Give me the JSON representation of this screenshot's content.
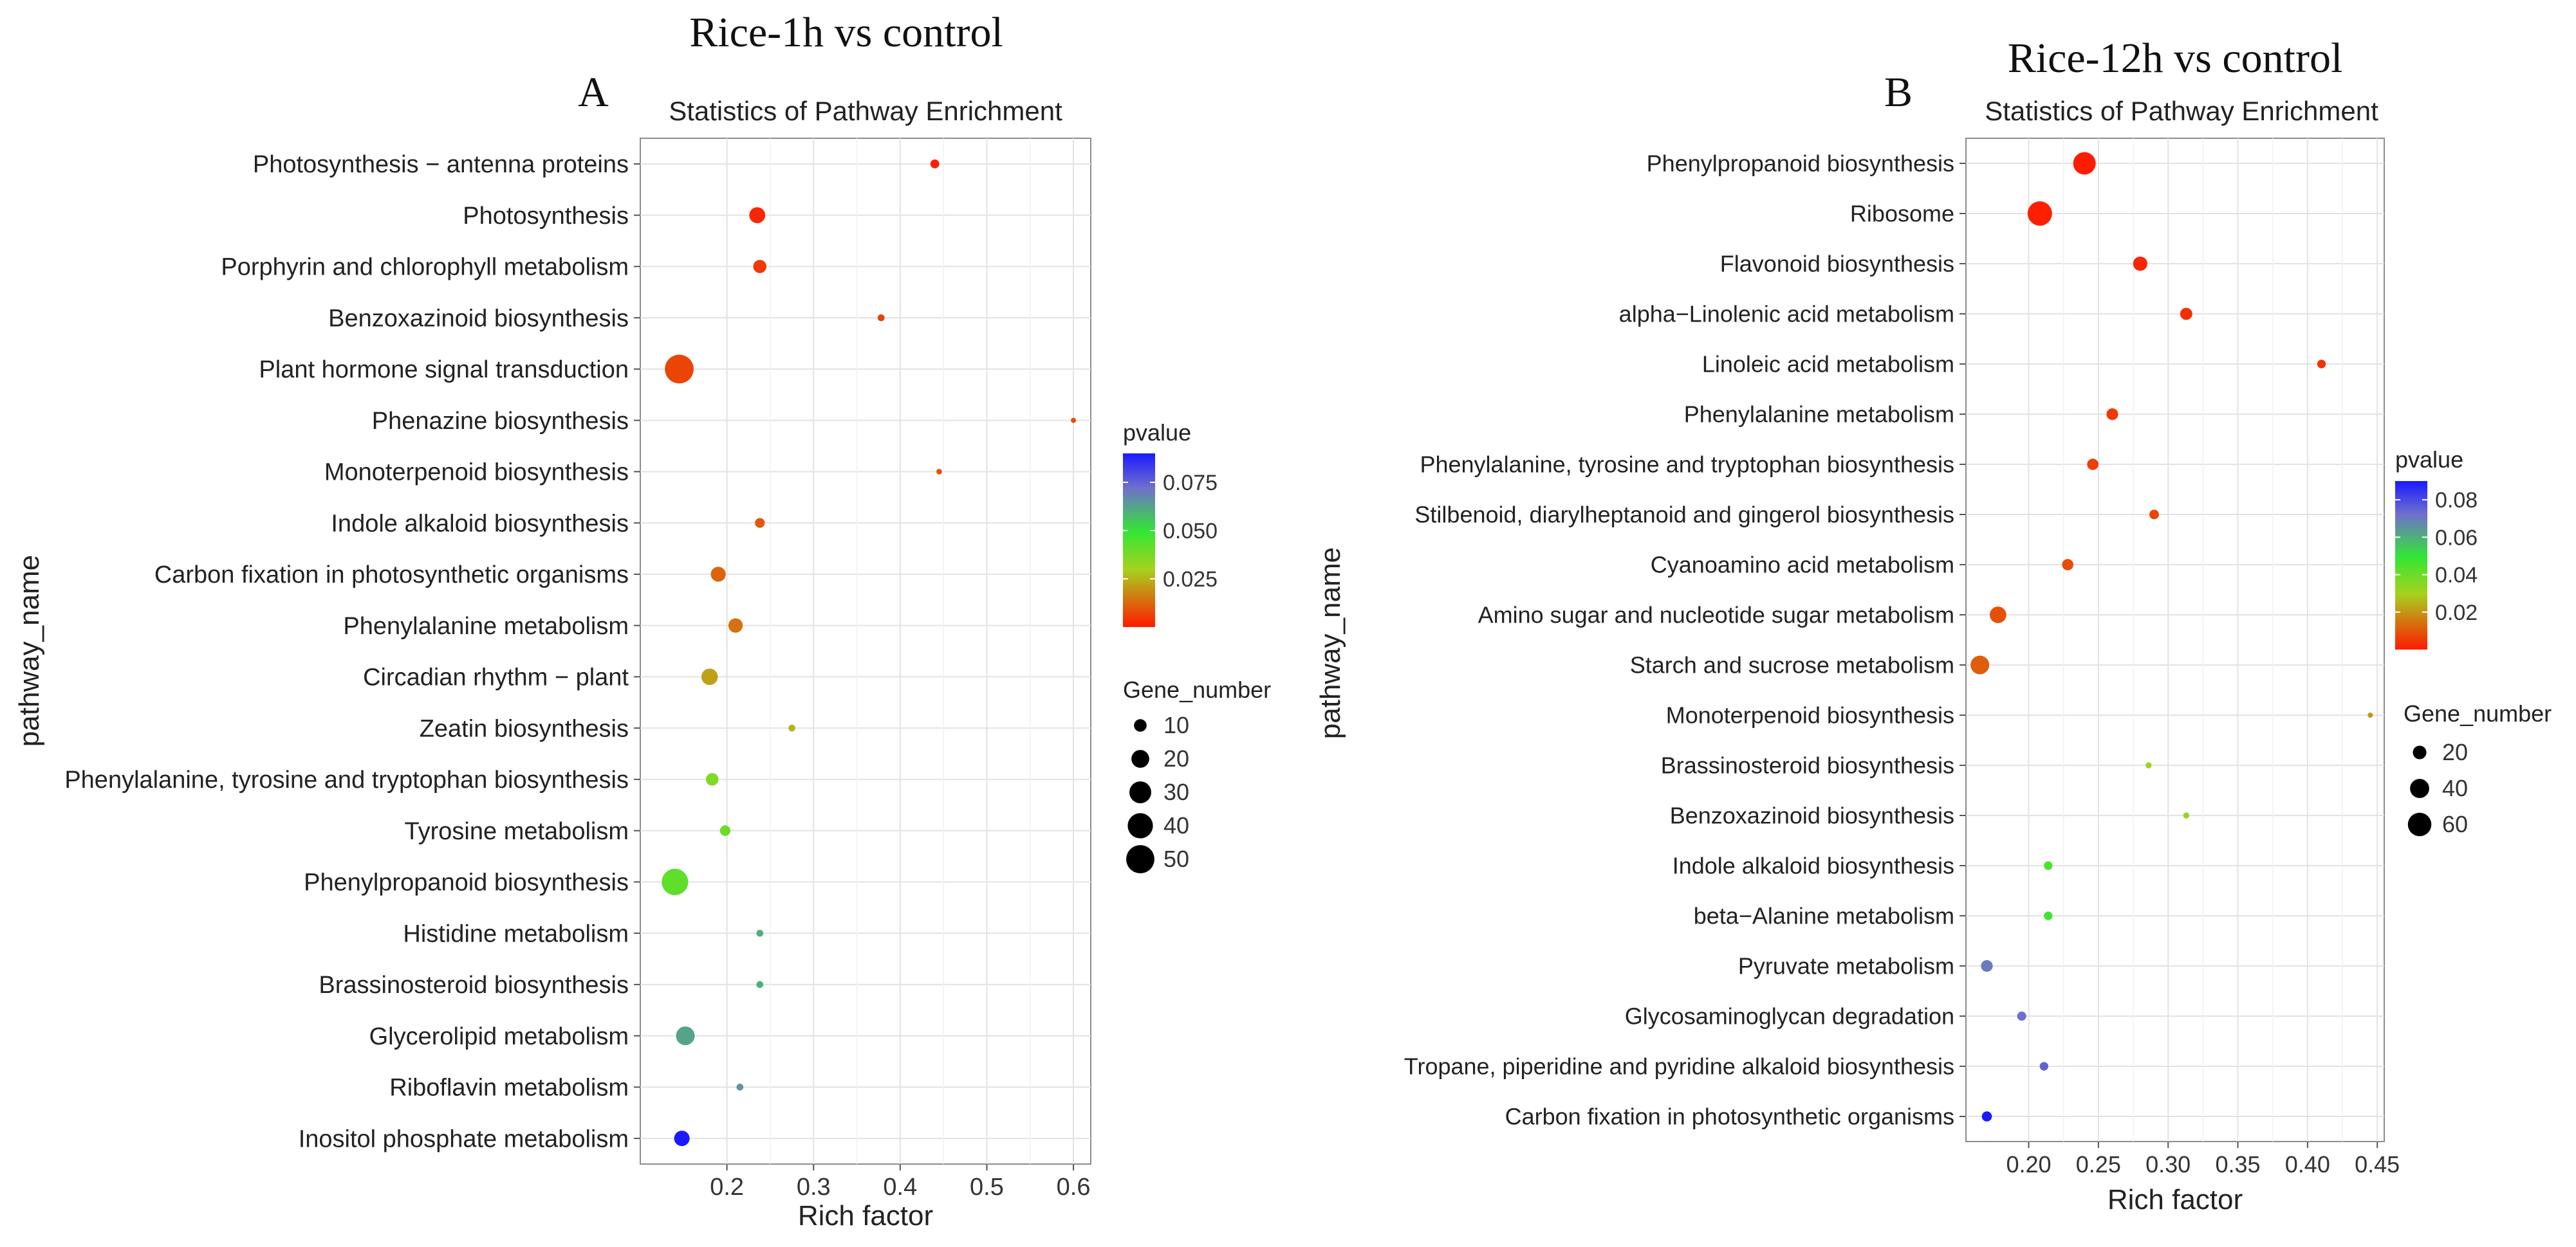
{
  "chart_data": [
    {
      "type": "scatter",
      "panel_letter": "A",
      "heading": "Rice-1h vs control",
      "title": "Statistics of Pathway Enrichment",
      "xlabel": "Rich factor",
      "ylabel": "pathway_name",
      "xlim": [
        0.1,
        0.62
      ],
      "xticks": [
        0.2,
        0.3,
        0.4,
        0.5,
        0.6
      ],
      "x_tick_labels": [
        "0.2",
        "0.3",
        "0.4",
        "0.5",
        "0.6"
      ],
      "grid": true,
      "color_legend": {
        "title": "pvalue",
        "domain": [
          0.0,
          0.09
        ],
        "ticks": [
          0.025,
          0.05,
          0.075
        ],
        "tick_labels": [
          "0.025",
          "0.050",
          "0.075"
        ]
      },
      "size_legend": {
        "title": "Gene_number",
        "values": [
          10,
          20,
          30,
          40,
          50
        ],
        "labels": [
          "10",
          "20",
          "30",
          "40",
          "50"
        ],
        "max_value": 55
      },
      "points": [
        {
          "pathway": "Photosynthesis − antenna proteins",
          "rich_factor": 0.44,
          "pvalue": 0.001,
          "gene_number": 5
        },
        {
          "pathway": "Photosynthesis",
          "rich_factor": 0.235,
          "pvalue": 0.002,
          "gene_number": 16
        },
        {
          "pathway": "Porphyrin and chlorophyll metabolism",
          "rich_factor": 0.238,
          "pvalue": 0.005,
          "gene_number": 11
        },
        {
          "pathway": "Benzoxazinoid biosynthesis",
          "rich_factor": 0.378,
          "pvalue": 0.006,
          "gene_number": 3
        },
        {
          "pathway": "Plant hormone signal transduction",
          "rich_factor": 0.145,
          "pvalue": 0.007,
          "gene_number": 52
        },
        {
          "pathway": "Phenazine biosynthesis",
          "rich_factor": 0.6,
          "pvalue": 0.008,
          "gene_number": 1
        },
        {
          "pathway": "Monoterpenoid biosynthesis",
          "rich_factor": 0.445,
          "pvalue": 0.009,
          "gene_number": 2
        },
        {
          "pathway": "Indole alkaloid biosynthesis",
          "rich_factor": 0.238,
          "pvalue": 0.01,
          "gene_number": 6
        },
        {
          "pathway": "Carbon fixation in photosynthetic organisms",
          "rich_factor": 0.19,
          "pvalue": 0.012,
          "gene_number": 14
        },
        {
          "pathway": "Phenylalanine metabolism",
          "rich_factor": 0.21,
          "pvalue": 0.014,
          "gene_number": 13
        },
        {
          "pathway": "Circadian rhythm − plant",
          "rich_factor": 0.18,
          "pvalue": 0.022,
          "gene_number": 17
        },
        {
          "pathway": "Zeatin biosynthesis",
          "rich_factor": 0.275,
          "pvalue": 0.025,
          "gene_number": 3
        },
        {
          "pathway": "Phenylalanine, tyrosine and tryptophan biosynthesis",
          "rich_factor": 0.183,
          "pvalue": 0.036,
          "gene_number": 10
        },
        {
          "pathway": "Tyrosine metabolism",
          "rich_factor": 0.198,
          "pvalue": 0.04,
          "gene_number": 7
        },
        {
          "pathway": "Phenylpropanoid biosynthesis",
          "rich_factor": 0.14,
          "pvalue": 0.042,
          "gene_number": 44
        },
        {
          "pathway": "Histidine metabolism",
          "rich_factor": 0.238,
          "pvalue": 0.06,
          "gene_number": 3
        },
        {
          "pathway": "Brassinosteroid biosynthesis",
          "rich_factor": 0.238,
          "pvalue": 0.06,
          "gene_number": 3
        },
        {
          "pathway": "Glycerolipid metabolism",
          "rich_factor": 0.152,
          "pvalue": 0.062,
          "gene_number": 22
        },
        {
          "pathway": "Riboflavin metabolism",
          "rich_factor": 0.215,
          "pvalue": 0.065,
          "gene_number": 3
        },
        {
          "pathway": "Inositol phosphate metabolism",
          "rich_factor": 0.148,
          "pvalue": 0.09,
          "gene_number": 15
        }
      ]
    },
    {
      "type": "scatter",
      "panel_letter": "B",
      "heading": "Rice-12h vs control",
      "title": "Statistics of Pathway Enrichment",
      "xlabel": "Rich factor",
      "ylabel": "pathway_name",
      "xlim": [
        0.155,
        0.455
      ],
      "xticks": [
        0.2,
        0.25,
        0.3,
        0.35,
        0.4,
        0.45
      ],
      "x_tick_labels": [
        "0.20",
        "0.25",
        "0.30",
        "0.35",
        "0.40",
        "0.45"
      ],
      "grid": true,
      "color_legend": {
        "title": "pvalue",
        "domain": [
          0.0,
          0.09
        ],
        "ticks": [
          0.02,
          0.04,
          0.06,
          0.08
        ],
        "tick_labels": [
          "0.02",
          "0.04",
          "0.06",
          "0.08"
        ]
      },
      "size_legend": {
        "title": "Gene_number",
        "values": [
          20,
          40,
          60
        ],
        "labels": [
          "20",
          "40",
          "60"
        ],
        "max_value": 65
      },
      "points": [
        {
          "pathway": "Phenylpropanoid biosynthesis",
          "rich_factor": 0.24,
          "pvalue": 0.0005,
          "gene_number": 55
        },
        {
          "pathway": "Ribosome",
          "rich_factor": 0.208,
          "pvalue": 0.001,
          "gene_number": 65
        },
        {
          "pathway": "Flavonoid biosynthesis",
          "rich_factor": 0.28,
          "pvalue": 0.002,
          "gene_number": 22
        },
        {
          "pathway": "alpha−Linolenic acid metabolism",
          "rich_factor": 0.313,
          "pvalue": 0.003,
          "gene_number": 16
        },
        {
          "pathway": "Linoleic acid metabolism",
          "rich_factor": 0.41,
          "pvalue": 0.004,
          "gene_number": 8
        },
        {
          "pathway": "Phenylalanine metabolism",
          "rich_factor": 0.26,
          "pvalue": 0.005,
          "gene_number": 15
        },
        {
          "pathway": "Phenylalanine, tyrosine and tryptophan biosynthesis",
          "rich_factor": 0.246,
          "pvalue": 0.006,
          "gene_number": 14
        },
        {
          "pathway": "Stilbenoid, diarylheptanoid and gingerol biosynthesis",
          "rich_factor": 0.29,
          "pvalue": 0.007,
          "gene_number": 10
        },
        {
          "pathway": "Cyanoamino acid metabolism",
          "rich_factor": 0.228,
          "pvalue": 0.008,
          "gene_number": 14
        },
        {
          "pathway": "Amino sugar and nucleotide sugar metabolism",
          "rich_factor": 0.178,
          "pvalue": 0.009,
          "gene_number": 30
        },
        {
          "pathway": "Starch and sucrose metabolism",
          "rich_factor": 0.165,
          "pvalue": 0.011,
          "gene_number": 38
        },
        {
          "pathway": "Monoterpenoid biosynthesis",
          "rich_factor": 0.445,
          "pvalue": 0.02,
          "gene_number": 1
        },
        {
          "pathway": "Brassinosteroid biosynthesis",
          "rich_factor": 0.286,
          "pvalue": 0.03,
          "gene_number": 4
        },
        {
          "pathway": "Benzoxazinoid biosynthesis",
          "rich_factor": 0.313,
          "pvalue": 0.032,
          "gene_number": 4
        },
        {
          "pathway": "Indole alkaloid biosynthesis",
          "rich_factor": 0.214,
          "pvalue": 0.045,
          "gene_number": 8
        },
        {
          "pathway": "beta−Alanine metabolism",
          "rich_factor": 0.214,
          "pvalue": 0.047,
          "gene_number": 8
        },
        {
          "pathway": "Pyruvate metabolism",
          "rich_factor": 0.17,
          "pvalue": 0.07,
          "gene_number": 15
        },
        {
          "pathway": "Glycosaminoglycan degradation",
          "rich_factor": 0.195,
          "pvalue": 0.072,
          "gene_number": 9
        },
        {
          "pathway": "Tropane, piperidine and pyridine alkaloid biosynthesis",
          "rich_factor": 0.211,
          "pvalue": 0.075,
          "gene_number": 8
        },
        {
          "pathway": "Carbon fixation in photosynthetic organisms",
          "rich_factor": 0.17,
          "pvalue": 0.09,
          "gene_number": 11
        }
      ]
    }
  ]
}
